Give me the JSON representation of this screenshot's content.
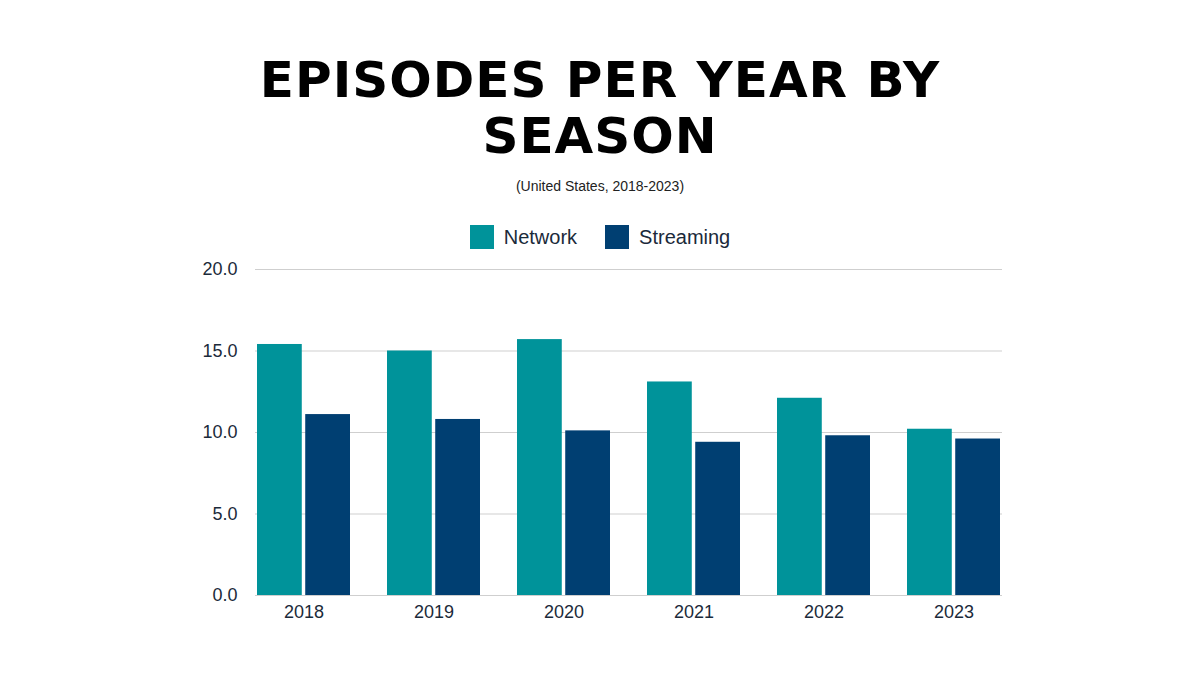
{
  "chart_data": {
    "type": "bar",
    "title": "EPISODES PER YEAR BY SEASON",
    "subtitle": "(United States, 2018-2023)",
    "categories": [
      "2018",
      "2019",
      "2020",
      "2021",
      "2022",
      "2023"
    ],
    "series": [
      {
        "name": "Network",
        "color": "#00939a",
        "values": [
          15.4,
          15.0,
          15.7,
          13.1,
          12.1,
          10.2
        ]
      },
      {
        "name": "Streaming",
        "color": "#003f72",
        "values": [
          11.1,
          10.8,
          10.1,
          9.4,
          9.8,
          9.6
        ]
      }
    ],
    "ylim": [
      0,
      20
    ],
    "yticks": [
      {
        "value": 0,
        "label": "0.0"
      },
      {
        "value": 5,
        "label": "5.0"
      },
      {
        "value": 10,
        "label": "10.0"
      },
      {
        "value": 15,
        "label": "15.0"
      },
      {
        "value": 20,
        "label": "20.0"
      }
    ],
    "grid": true,
    "legend": "top"
  }
}
